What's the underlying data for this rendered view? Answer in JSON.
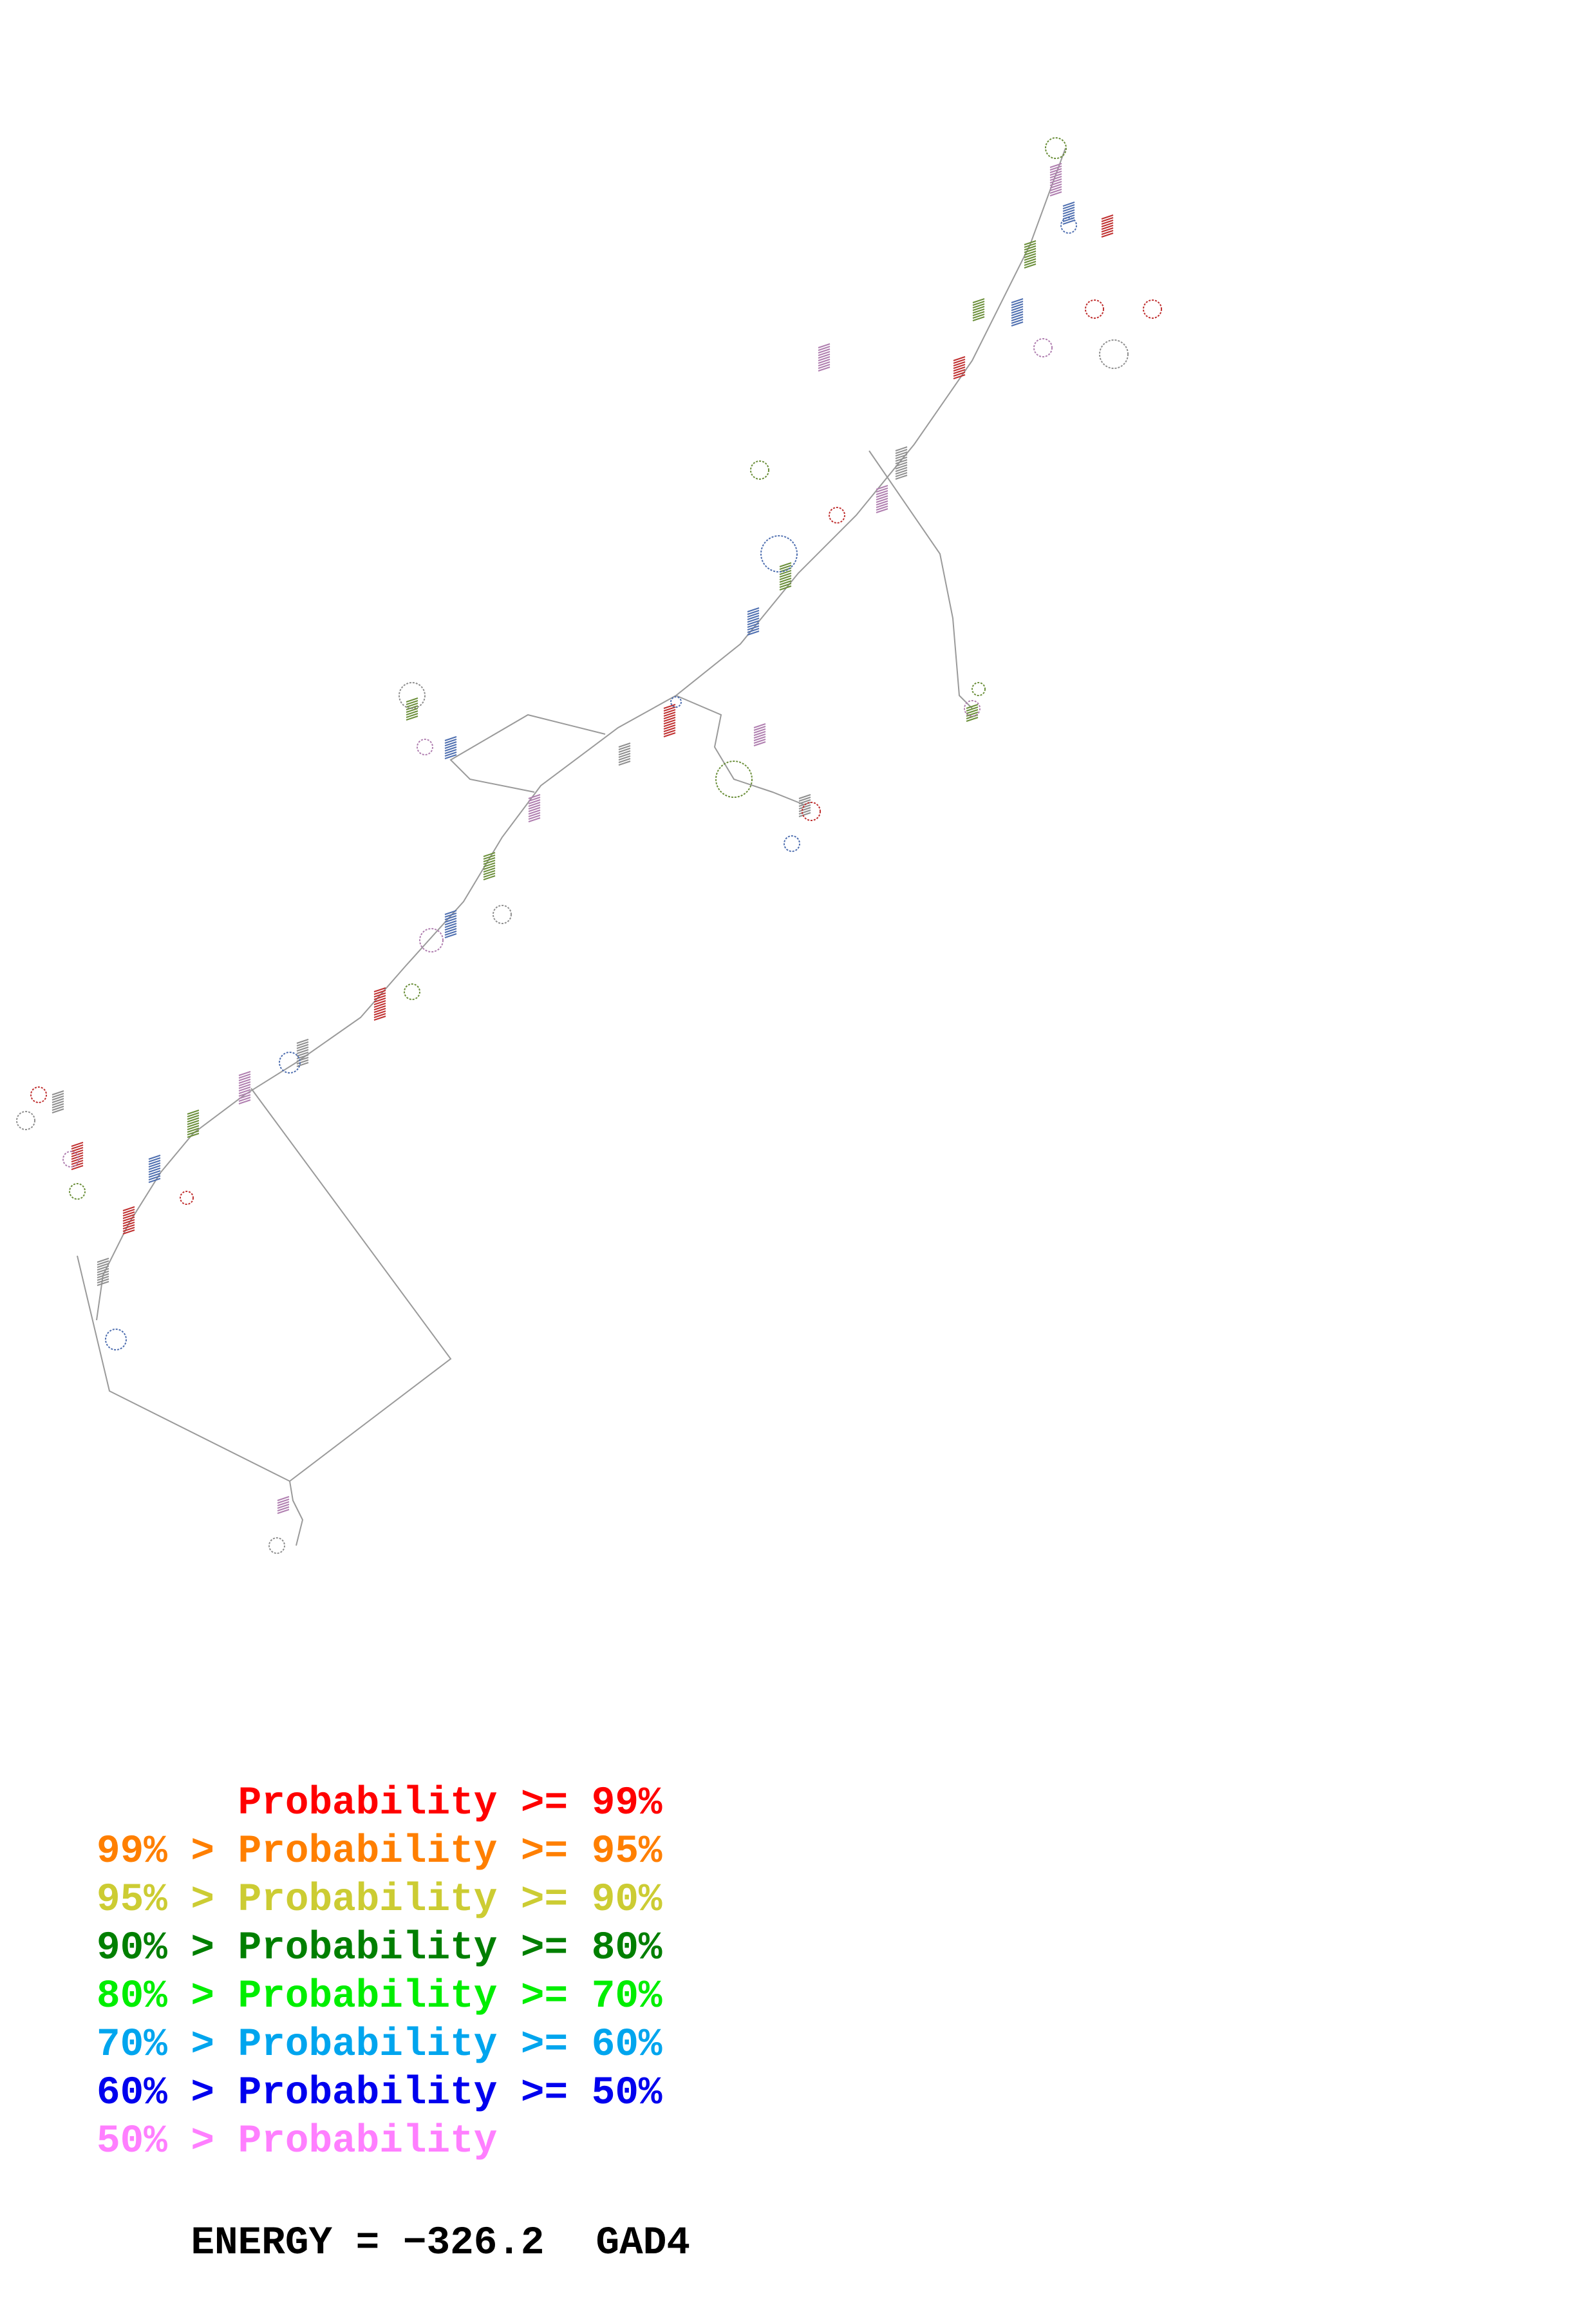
{
  "legend": {
    "rows": [
      {
        "text": "      Probability >= 99%",
        "color": "#ff0000"
      },
      {
        "text": "99% > Probability >= 95%",
        "color": "#ff7f00"
      },
      {
        "text": "95% > Probability >= 90%",
        "color": "#cccc33"
      },
      {
        "text": "90% > Probability >= 80%",
        "color": "#007f00"
      },
      {
        "text": "80% > Probability >= 70%",
        "color": "#00ee00"
      },
      {
        "text": "70% > Probability >= 60%",
        "color": "#00a5ee"
      },
      {
        "text": "60% > Probability >= 50%",
        "color": "#0000ee"
      },
      {
        "text": "50% > Probability",
        "color": "#ff7fff"
      }
    ]
  },
  "energy": {
    "label": "ENERGY = −326.2",
    "name": "GAD4"
  },
  "structure_colors": [
    "#b07fb0",
    "#6b8f3a",
    "#4f6fb0",
    "#c03030",
    "#8f8f8f"
  ]
}
